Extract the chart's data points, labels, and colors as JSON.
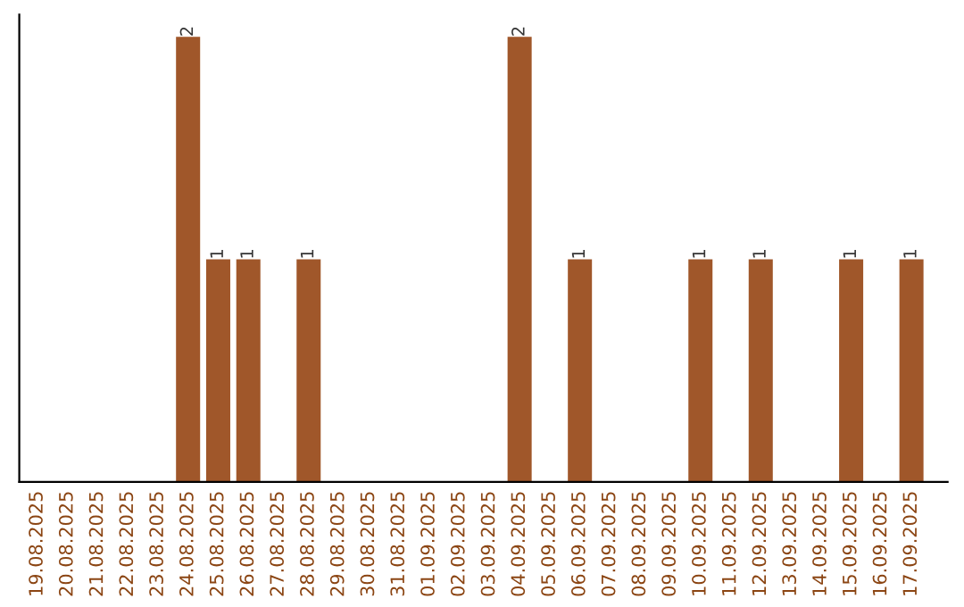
{
  "chart_data": {
    "type": "bar",
    "categories": [
      "19.08.2025",
      "20.08.2025",
      "21.08.2025",
      "22.08.2025",
      "23.08.2025",
      "24.08.2025",
      "25.08.2025",
      "26.08.2025",
      "27.08.2025",
      "28.08.2025",
      "29.08.2025",
      "30.08.2025",
      "31.08.2025",
      "01.09.2025",
      "02.09.2025",
      "03.09.2025",
      "04.09.2025",
      "05.09.2025",
      "06.09.2025",
      "07.09.2025",
      "08.09.2025",
      "09.09.2025",
      "10.09.2025",
      "11.09.2025",
      "12.09.2025",
      "13.09.2025",
      "14.09.2025",
      "15.09.2025",
      "16.09.2025",
      "17.09.2025"
    ],
    "values": [
      0,
      0,
      0,
      0,
      0,
      2,
      1,
      1,
      0,
      1,
      0,
      0,
      0,
      0,
      0,
      0,
      2,
      0,
      1,
      0,
      0,
      0,
      1,
      0,
      1,
      0,
      0,
      1,
      0,
      1
    ],
    "value_labels": [
      null,
      null,
      null,
      null,
      null,
      "2",
      "1",
      "1",
      null,
      "1",
      null,
      null,
      null,
      null,
      null,
      null,
      "2",
      null,
      "1",
      null,
      null,
      null,
      "1",
      null,
      "1",
      null,
      null,
      "1",
      null,
      "1"
    ],
    "color": "#a0572a",
    "tick_labels": "x"
  }
}
